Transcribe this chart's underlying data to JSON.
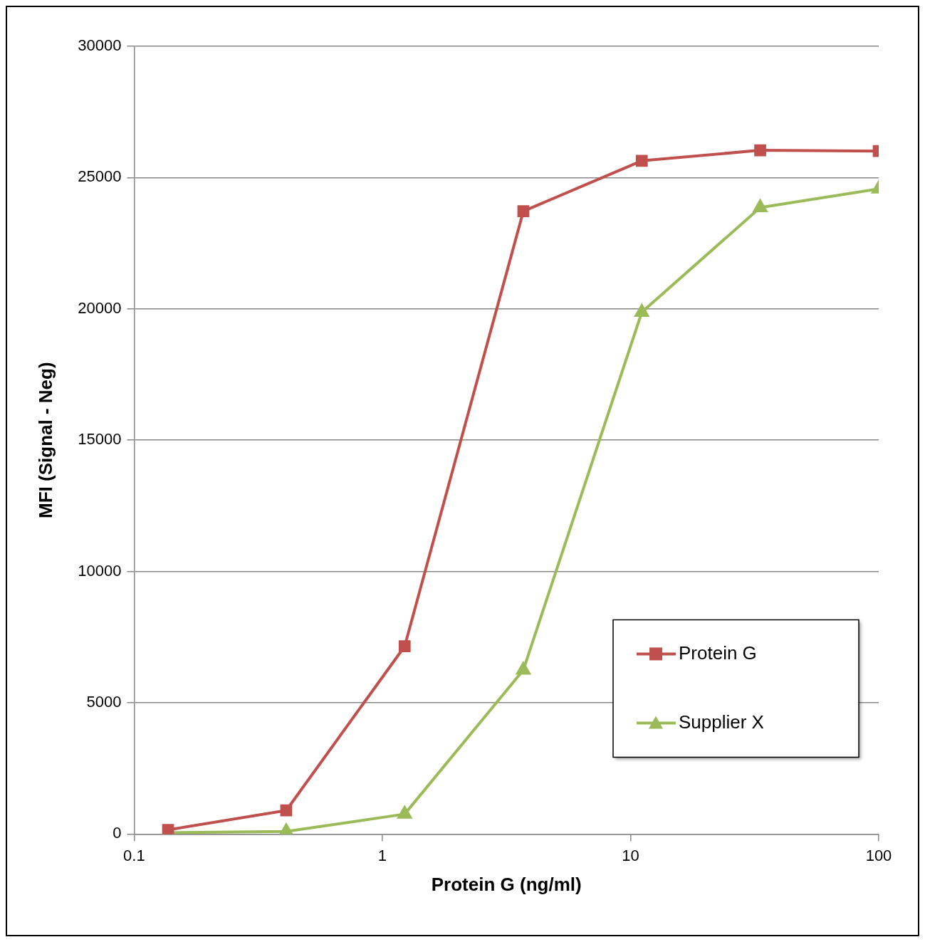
{
  "chart_data": {
    "type": "line",
    "xlabel": "Protein G (ng/ml)",
    "ylabel": "MFI (Signal - Neg)",
    "x": [
      0.137,
      0.41,
      1.23,
      3.7,
      11.1,
      33.3,
      100
    ],
    "series": [
      {
        "name": "Protein G",
        "color": "#c0504d",
        "marker": "square",
        "values": [
          160,
          900,
          7150,
          23720,
          25640,
          26040,
          26010
        ]
      },
      {
        "name": "Supplier X",
        "color": "#9bbb59",
        "marker": "triangle",
        "values": [
          50,
          100,
          760,
          6250,
          19870,
          23860,
          24570
        ]
      }
    ],
    "log": "x",
    "xlim": [
      0.1,
      100
    ],
    "xticks": [
      0.1,
      1,
      10,
      100
    ],
    "ylim": [
      0,
      30000
    ],
    "yticks": [
      0,
      5000,
      10000,
      15000,
      20000,
      25000,
      30000
    ],
    "grid": "y",
    "legend": "bottom right",
    "line_style": "solid"
  }
}
